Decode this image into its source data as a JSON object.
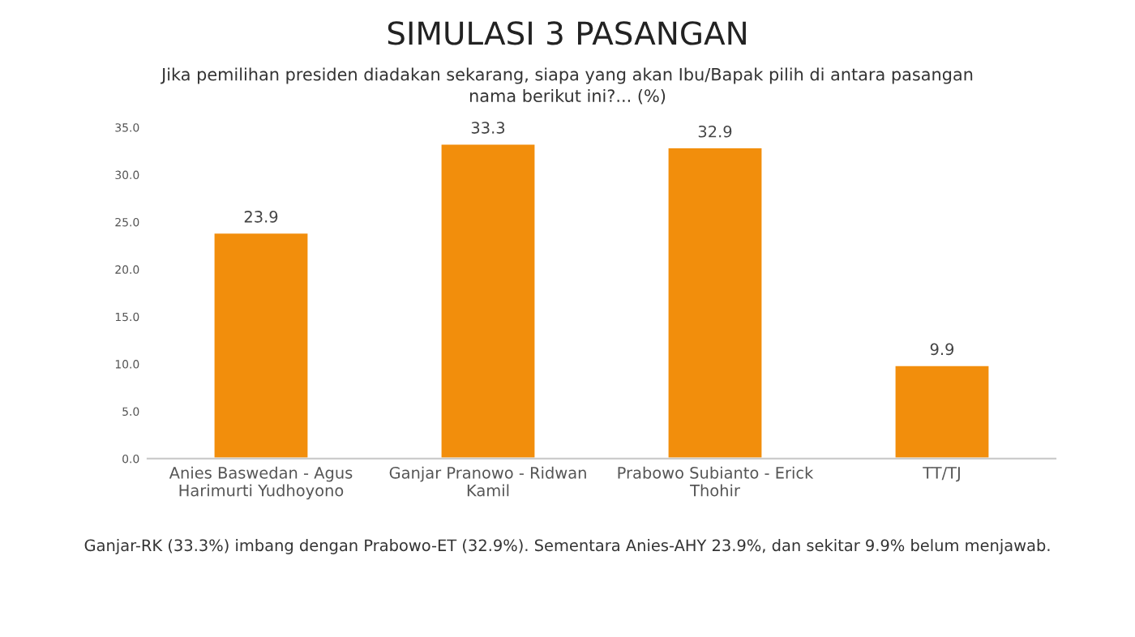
{
  "chart_data": {
    "type": "bar",
    "title": "SIMULASI 3 PASANGAN",
    "subtitle": "Jika pemilihan presiden diadakan sekarang, siapa yang akan Ibu/Bapak pilih di antara pasangan\nnama berikut ini?... (%)",
    "categories": [
      "Anies Baswedan - Agus\nHarimurti Yudhoyono",
      "Ganjar Pranowo - Ridwan\nKamil",
      "Prabowo Subianto - Erick\nThohir",
      "TT/TJ"
    ],
    "values": [
      23.9,
      33.3,
      32.9,
      9.9
    ],
    "color": "#f28e0c",
    "ylim": [
      0,
      35
    ],
    "yticks": [
      {
        "value": 0,
        "label": "0.0"
      },
      {
        "value": 5,
        "label": "5.0"
      },
      {
        "value": 10,
        "label": "10.0"
      },
      {
        "value": 15,
        "label": "15.0"
      },
      {
        "value": 20,
        "label": "20.0"
      },
      {
        "value": 25,
        "label": "25.0"
      },
      {
        "value": 30,
        "label": "30.0"
      },
      {
        "value": 35,
        "label": "35.0"
      }
    ],
    "data_labels": true,
    "grid": false,
    "annotations": [
      "Ganjar-RK (33.3%) imbang dengan Prabowo-ET (32.9%). Sementara Anies-AHY 23.9%, dan sekitar 9.9% belum menjawab."
    ]
  }
}
